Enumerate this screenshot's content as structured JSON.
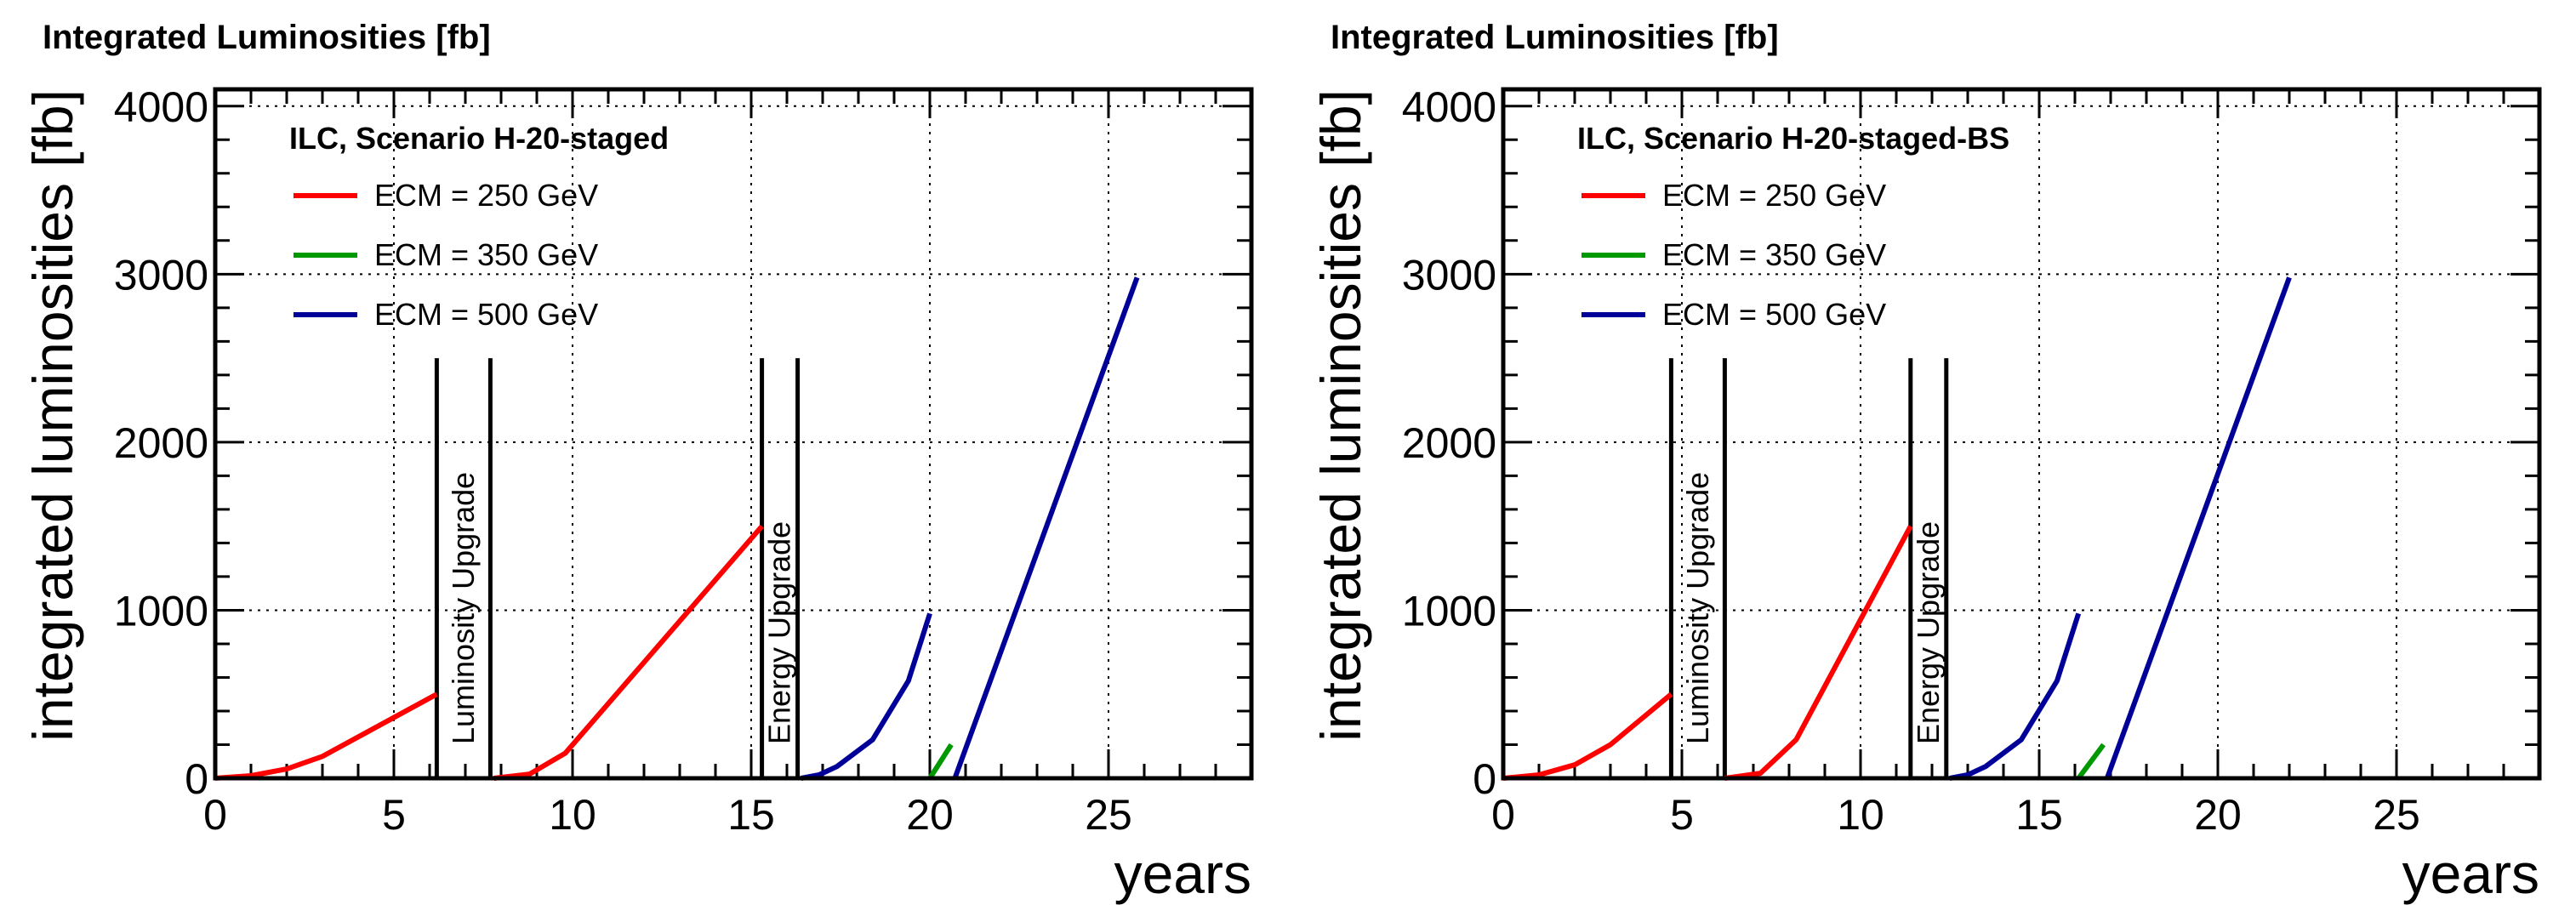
{
  "chart_data": [
    {
      "type": "line",
      "title": "Integrated Luminosities  [fb]",
      "xlabel": "years",
      "ylabel": "integrated luminosities  [fb]",
      "xlim": [
        0,
        29
      ],
      "ylim": [
        0,
        4100
      ],
      "x_ticks": [
        0,
        5,
        10,
        15,
        20,
        25
      ],
      "y_ticks": [
        0,
        1000,
        2000,
        3000,
        4000
      ],
      "grid": true,
      "legend_placement": "top-left",
      "legend_title": "ILC, Scenario H-20-staged",
      "series": [
        {
          "name": "ECM = 250 GeV",
          "color": "#ff0000",
          "segments": [
            {
              "x": [
                0,
                1,
                2,
                3,
                6.2
              ],
              "y": [
                0,
                15,
                55,
                130,
                500
              ]
            },
            {
              "x": [
                7.8,
                8.8,
                9.8,
                15.3
              ],
              "y": [
                0,
                25,
                150,
                1500
              ]
            }
          ]
        },
        {
          "name": "ECM = 350 GeV",
          "color": "#009900",
          "segments": [
            {
              "x": [
                20.0,
                20.6
              ],
              "y": [
                0,
                200
              ]
            }
          ]
        },
        {
          "name": "ECM = 500 GeV",
          "color": "#000099",
          "segments": [
            {
              "x": [
                16.4,
                16.9,
                17.4,
                18.4,
                19.4,
                20.0
              ],
              "y": [
                0,
                20,
                70,
                230,
                580,
                980
              ]
            },
            {
              "x": [
                20.7,
                25.8
              ],
              "y": [
                0,
                2980
              ]
            }
          ]
        }
      ],
      "bands": [
        {
          "label": "Luminosity Upgrade",
          "x_start": 6.2,
          "x_end": 7.7,
          "y_top": 2500
        },
        {
          "label": "Energy Upgrade",
          "x_start": 15.3,
          "x_end": 16.3,
          "y_top": 2500
        }
      ]
    },
    {
      "type": "line",
      "title": "Integrated Luminosities  [fb]",
      "xlabel": "years",
      "ylabel": "integrated luminosities  [fb]",
      "xlim": [
        0,
        29
      ],
      "ylim": [
        0,
        4100
      ],
      "x_ticks": [
        0,
        5,
        10,
        15,
        20,
        25
      ],
      "y_ticks": [
        0,
        1000,
        2000,
        3000,
        4000
      ],
      "grid": true,
      "legend_placement": "top-left",
      "legend_title": "ILC, Scenario H-20-staged-BS",
      "series": [
        {
          "name": "ECM = 250 GeV",
          "color": "#ff0000",
          "segments": [
            {
              "x": [
                0,
                1,
                2,
                3,
                4.7
              ],
              "y": [
                0,
                20,
                80,
                200,
                500
              ]
            },
            {
              "x": [
                6.2,
                7.2,
                8.2,
                11.4
              ],
              "y": [
                0,
                30,
                230,
                1500
              ]
            }
          ]
        },
        {
          "name": "ECM = 350 GeV",
          "color": "#009900",
          "segments": [
            {
              "x": [
                16.1,
                16.8
              ],
              "y": [
                0,
                200
              ]
            }
          ]
        },
        {
          "name": "ECM = 500 GeV",
          "color": "#000099",
          "segments": [
            {
              "x": [
                12.5,
                13.0,
                13.5,
                14.5,
                15.5,
                16.1
              ],
              "y": [
                0,
                20,
                70,
                230,
                580,
                980
              ]
            },
            {
              "x": [
                16.9,
                22.0
              ],
              "y": [
                0,
                2980
              ]
            }
          ]
        }
      ],
      "bands": [
        {
          "label": "Luminosity Upgrade",
          "x_start": 4.7,
          "x_end": 6.2,
          "y_top": 2500
        },
        {
          "label": "Energy Upgrade",
          "x_start": 11.4,
          "x_end": 12.4,
          "y_top": 2500
        }
      ]
    }
  ]
}
